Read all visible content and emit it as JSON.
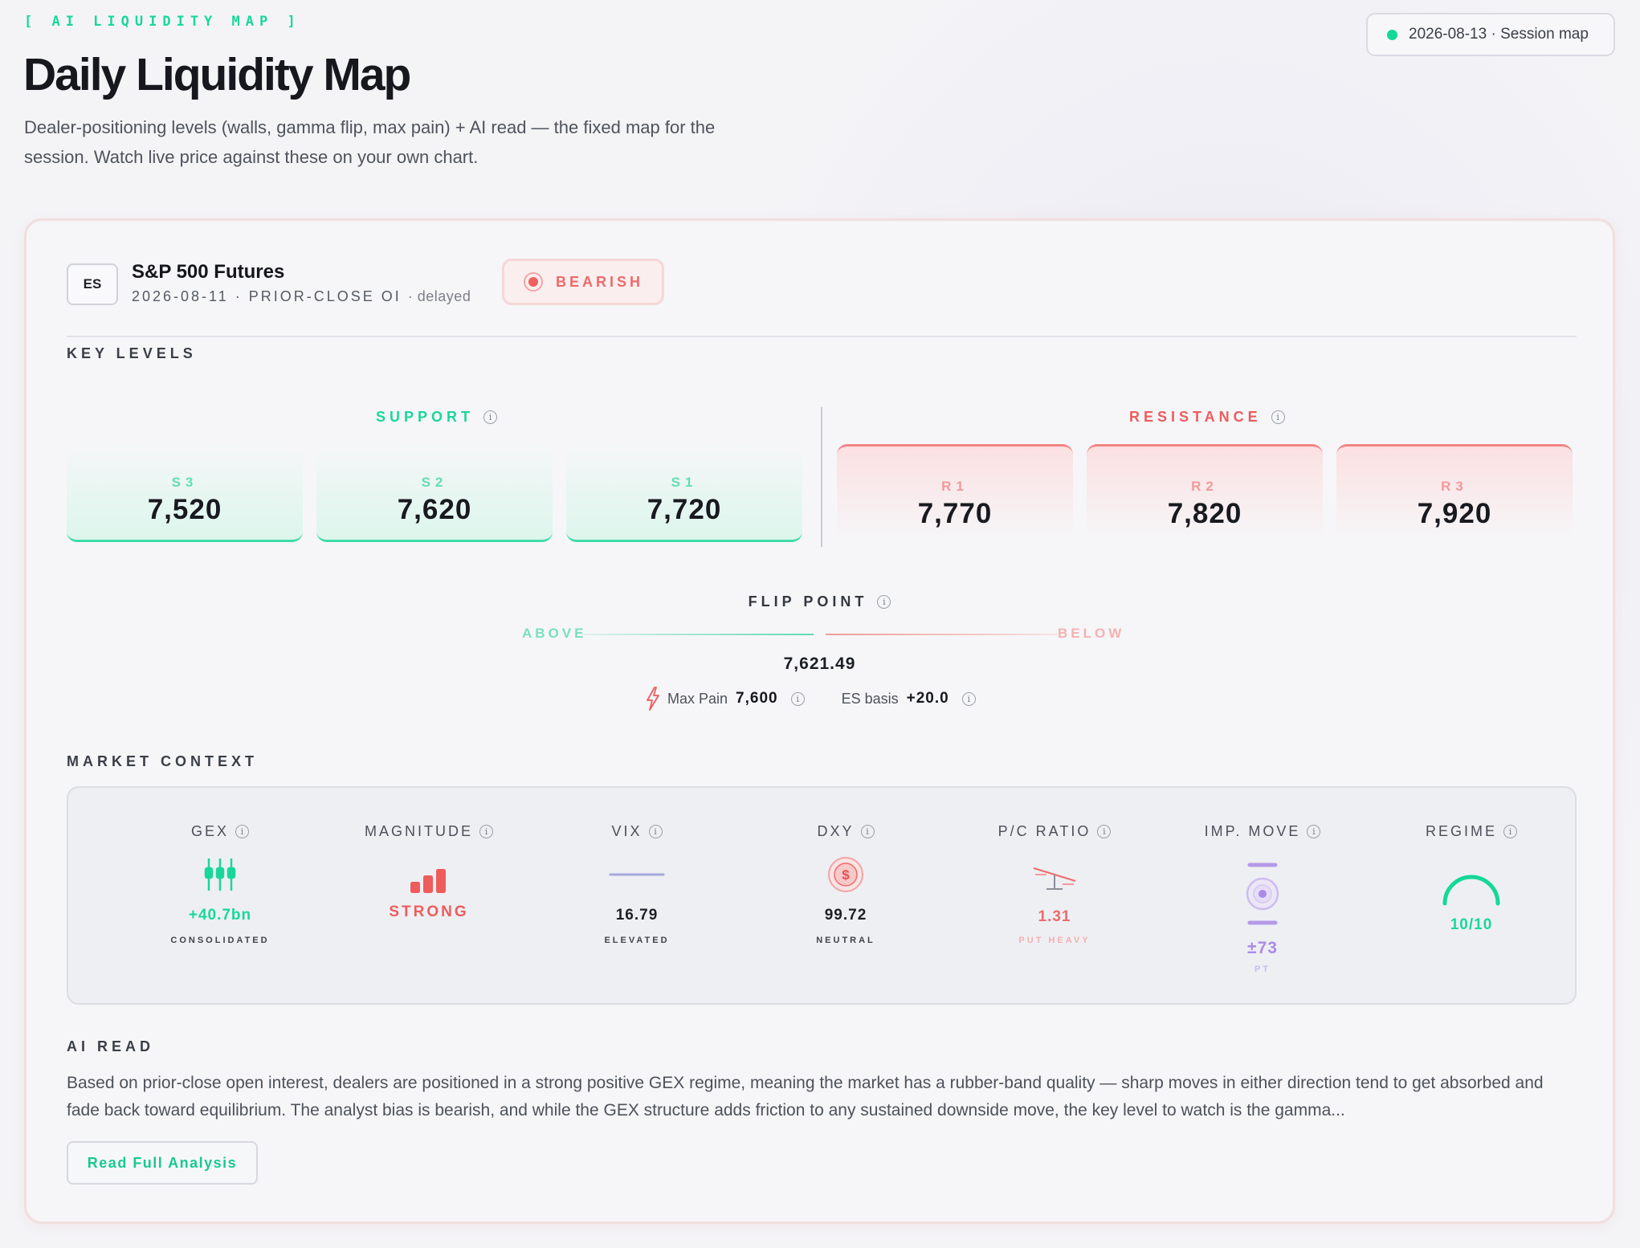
{
  "header": {
    "kicker": "[ AI LIQUIDITY MAP ]",
    "title": "Daily Liquidity Map",
    "subtitle": "Dealer-positioning levels (walls, gamma flip, max pain) + AI read — the fixed map for the session. Watch live price against these on your own chart.",
    "session_label": "2026-08-13 · Session map"
  },
  "instrument": {
    "symbol": "ES",
    "name": "S&P 500 Futures",
    "meta": "2026-08-11 · PRIOR-CLOSE OI",
    "meta_suffix": "· delayed",
    "bias": "BEARISH"
  },
  "key_levels": {
    "section": "KEY LEVELS",
    "support_label": "SUPPORT",
    "resistance_label": "RESISTANCE",
    "support": [
      {
        "name": "S3",
        "value": "7,520"
      },
      {
        "name": "S2",
        "value": "7,620"
      },
      {
        "name": "S1",
        "value": "7,720"
      }
    ],
    "resistance": [
      {
        "name": "R1",
        "value": "7,770"
      },
      {
        "name": "R2",
        "value": "7,820"
      },
      {
        "name": "R3",
        "value": "7,920"
      }
    ]
  },
  "flip": {
    "label": "FLIP POINT",
    "above": "ABOVE",
    "below": "BELOW",
    "value": "7,621.49",
    "max_pain_label": "Max Pain",
    "max_pain_value": "7,600",
    "basis_label": "ES basis",
    "basis_value": "+20.0"
  },
  "market_context": {
    "section": "MARKET CONTEXT",
    "metrics": [
      {
        "label": "GEX",
        "value": "+40.7bn",
        "sub": "CONSOLIDATED",
        "icon": "candles-icon"
      },
      {
        "label": "MAGNITUDE",
        "value": "STRONG",
        "sub": "",
        "icon": "bars-icon"
      },
      {
        "label": "VIX",
        "value": "16.79",
        "sub": "ELEVATED",
        "icon": "flat-line-icon"
      },
      {
        "label": "DXY",
        "value": "99.72",
        "sub": "NEUTRAL",
        "icon": "dollar-coin-icon"
      },
      {
        "label": "P/C RATIO",
        "value": "1.31",
        "sub": "PUT HEAVY",
        "icon": "scale-icon"
      },
      {
        "label": "IMP. MOVE",
        "value": "±73",
        "sub": "PT",
        "icon": "range-icon"
      },
      {
        "label": "REGIME",
        "value": "10/10",
        "sub": "",
        "icon": "gauge-icon"
      }
    ]
  },
  "ai_read": {
    "section": "AI READ",
    "text": "Based on prior-close open interest, dealers are positioned in a strong positive GEX regime, meaning the market has a rubber-band quality — sharp moves in either direction tend to get absorbed and fade back toward equilibrium. The analyst bias is bearish, and while the GEX structure adds friction to any sustained downside move, the key level to watch is the gamma...",
    "button": "Read Full Analysis"
  },
  "colors": {
    "green": "#19d79a",
    "red": "#ee5c5c",
    "purple": "#a98bea",
    "background": "#f4f4f7"
  }
}
